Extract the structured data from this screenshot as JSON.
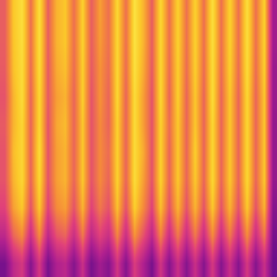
{
  "chart_data": {
    "type": "heatmap",
    "cells": [
      [
        0.1,
        0.35,
        0.45,
        0.15,
        0.45,
        0.1,
        0.3,
        0.35,
        0.15,
        0.4,
        0.1,
        0.25,
        0.15,
        0.43,
        0.15,
        0.47,
        0.3,
        0.1,
        0.43,
        0.15,
        0.4,
        0.15,
        0.4,
        0.15,
        0.45,
        0.15,
        0.4,
        0.15,
        0.45,
        0.15,
        0.4,
        0.05
      ],
      [
        0.35,
        0.6,
        0.7,
        0.4,
        0.7,
        0.35,
        0.55,
        0.6,
        0.4,
        0.65,
        0.35,
        0.5,
        0.4,
        0.68,
        0.4,
        0.72,
        0.55,
        0.35,
        0.68,
        0.4,
        0.65,
        0.4,
        0.65,
        0.4,
        0.7,
        0.4,
        0.65,
        0.4,
        0.7,
        0.4,
        0.65,
        0.1
      ],
      [
        0.5,
        0.75,
        0.85,
        0.55,
        0.85,
        0.5,
        0.7,
        0.75,
        0.55,
        0.8,
        0.5,
        0.65,
        0.55,
        0.83,
        0.55,
        0.87,
        0.7,
        0.5,
        0.83,
        0.55,
        0.8,
        0.55,
        0.8,
        0.55,
        0.85,
        0.55,
        0.8,
        0.55,
        0.85,
        0.55,
        0.8,
        0.15
      ],
      [
        0.55,
        0.8,
        0.9,
        0.6,
        0.9,
        0.55,
        0.75,
        0.8,
        0.6,
        0.85,
        0.55,
        0.7,
        0.6,
        0.88,
        0.6,
        0.92,
        0.75,
        0.55,
        0.88,
        0.6,
        0.85,
        0.6,
        0.85,
        0.6,
        0.9,
        0.6,
        0.85,
        0.6,
        0.9,
        0.6,
        0.85,
        0.2
      ],
      [
        0.55,
        0.82,
        0.9,
        0.6,
        0.92,
        0.55,
        0.75,
        0.8,
        0.6,
        0.85,
        0.55,
        0.7,
        0.62,
        0.88,
        0.6,
        0.92,
        0.78,
        0.55,
        0.88,
        0.6,
        0.85,
        0.6,
        0.87,
        0.6,
        0.9,
        0.6,
        0.85,
        0.6,
        0.9,
        0.6,
        0.85,
        0.2
      ],
      [
        0.57,
        0.8,
        0.9,
        0.6,
        0.9,
        0.55,
        0.77,
        0.82,
        0.6,
        0.85,
        0.55,
        0.7,
        0.6,
        0.88,
        0.6,
        0.92,
        0.75,
        0.55,
        0.88,
        0.62,
        0.85,
        0.6,
        0.85,
        0.6,
        0.9,
        0.6,
        0.85,
        0.6,
        0.9,
        0.6,
        0.85,
        0.2
      ],
      [
        0.55,
        0.8,
        0.92,
        0.6,
        0.9,
        0.57,
        0.75,
        0.8,
        0.6,
        0.87,
        0.55,
        0.72,
        0.6,
        0.9,
        0.6,
        0.92,
        0.75,
        0.55,
        0.9,
        0.6,
        0.87,
        0.6,
        0.85,
        0.6,
        0.92,
        0.6,
        0.85,
        0.6,
        0.9,
        0.6,
        0.85,
        0.22
      ],
      [
        0.57,
        0.83,
        0.92,
        0.62,
        0.92,
        0.57,
        0.78,
        0.83,
        0.62,
        0.87,
        0.57,
        0.72,
        0.62,
        0.9,
        0.62,
        0.94,
        0.78,
        0.57,
        0.9,
        0.62,
        0.87,
        0.62,
        0.87,
        0.62,
        0.92,
        0.62,
        0.87,
        0.62,
        0.92,
        0.62,
        0.87,
        0.22
      ],
      [
        0.58,
        0.84,
        0.93,
        0.63,
        0.93,
        0.58,
        0.8,
        0.85,
        0.63,
        0.88,
        0.58,
        0.74,
        0.63,
        0.9,
        0.63,
        0.95,
        0.8,
        0.58,
        0.9,
        0.63,
        0.88,
        0.63,
        0.88,
        0.63,
        0.93,
        0.63,
        0.88,
        0.63,
        0.93,
        0.63,
        0.88,
        0.25
      ],
      [
        0.58,
        0.85,
        0.93,
        0.63,
        0.93,
        0.58,
        0.8,
        0.85,
        0.63,
        0.88,
        0.58,
        0.75,
        0.63,
        0.9,
        0.63,
        0.95,
        0.8,
        0.58,
        0.9,
        0.63,
        0.88,
        0.63,
        0.88,
        0.63,
        0.93,
        0.63,
        0.88,
        0.63,
        0.93,
        0.63,
        0.88,
        0.25
      ]
    ],
    "zlim": [
      0,
      1
    ],
    "tick_labels": false
  }
}
